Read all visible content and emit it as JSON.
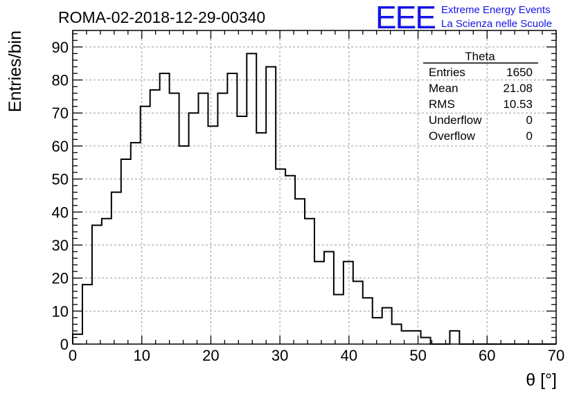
{
  "header": {
    "title": "ROMA-02-2018-12-29-00340",
    "logo_text": "EEE",
    "logo_line1": "Extreme Energy Events",
    "logo_line2": "La Scienza nelle Scuole",
    "logo_color": "#1414e6"
  },
  "stats": {
    "title": "Theta",
    "rows": [
      {
        "label": "Entries",
        "value": "1650"
      },
      {
        "label": "Mean",
        "value": "21.08"
      },
      {
        "label": "RMS",
        "value": "10.53"
      },
      {
        "label": "Underflow",
        "value": "0"
      },
      {
        "label": "Overflow",
        "value": "0"
      }
    ]
  },
  "chart_data": {
    "type": "histogram",
    "xlabel": "θ [°]",
    "ylabel": "Entries/bin",
    "xlim": [
      0,
      70
    ],
    "ylim": [
      0,
      95
    ],
    "grid": true,
    "x_ticks": [
      0,
      10,
      20,
      30,
      40,
      50,
      60,
      70
    ],
    "y_ticks": [
      0,
      10,
      20,
      30,
      40,
      50,
      60,
      70,
      80,
      90
    ],
    "bin_width": 1.4,
    "values": [
      3,
      18,
      36,
      38,
      46,
      56,
      61,
      72,
      77,
      82,
      76,
      60,
      70,
      76,
      66,
      76,
      82,
      69,
      88,
      64,
      84,
      53,
      51,
      44,
      38,
      25,
      28,
      15,
      25,
      19,
      14,
      8,
      11,
      6,
      4,
      4,
      2,
      0,
      0,
      4,
      0,
      0,
      0,
      0,
      0,
      0,
      0,
      0,
      0,
      0
    ]
  }
}
